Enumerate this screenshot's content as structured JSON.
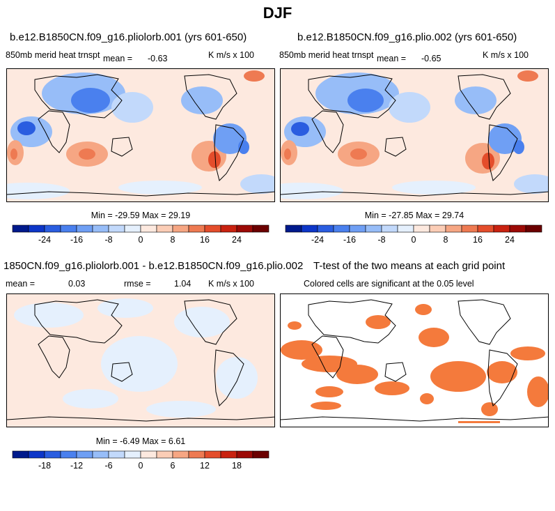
{
  "suptitle": "DJF",
  "panels": [
    {
      "title": "b.e12.B1850CN.f09_g16.pliolorb.001 (yrs 601-650)",
      "left_label": "850mb merid heat trnspt",
      "mean_label": "mean =",
      "mean_value": "-0.63",
      "right_label": "K m/s x 100",
      "minmax": "Min = -29.59 Max = 29.19",
      "colorbar_ticks": [
        "-24",
        "-16",
        "-8",
        "0",
        "8",
        "16",
        "24"
      ]
    },
    {
      "title": "b.e12.B1850CN.f09_g16.plio.002 (yrs 601-650)",
      "left_label": "850mb merid heat trnspt",
      "mean_label": "mean =",
      "mean_value": "-0.65",
      "right_label": "K m/s x 100",
      "minmax": "Min = -27.85 Max = 29.74",
      "colorbar_ticks": [
        "-24",
        "-16",
        "-8",
        "0",
        "8",
        "16",
        "24"
      ]
    },
    {
      "title": "1850CN.f09_g16.pliolorb.001 - b.e12.B1850CN.f09_g16.plio.002",
      "left_label": "mean =",
      "mean_value": "0.03",
      "rmse_label": "rmse =",
      "rmse_value": "1.04",
      "right_label": "K m/s x 100",
      "minmax": "Min = -6.49 Max = 6.61",
      "colorbar_ticks": [
        "-18",
        "-12",
        "-6",
        "0",
        "6",
        "12",
        "18"
      ]
    },
    {
      "title": "T-test of the two means at each grid point",
      "subtitle": "Colored cells are significant at the 0.05 level"
    }
  ],
  "colors": {
    "significance": "#f47a3c",
    "diverging": [
      "#001a8c",
      "#0d36c8",
      "#2a5de0",
      "#4a80ee",
      "#6f9ff4",
      "#97bdf8",
      "#c2d9fb",
      "#e5f0fd",
      "#fde9df",
      "#fbcdb6",
      "#f6a683",
      "#ee7a52",
      "#e44d2b",
      "#c92210",
      "#9c0a06",
      "#6b0000"
    ]
  }
}
